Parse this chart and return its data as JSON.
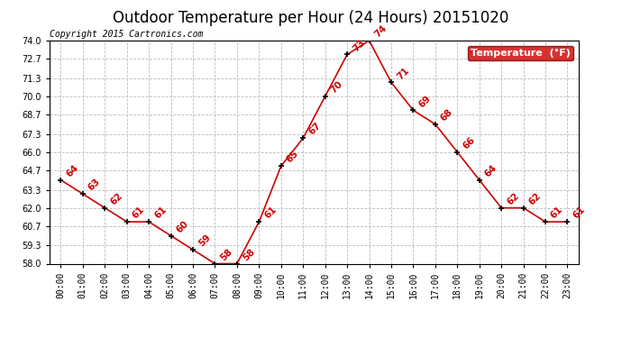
{
  "title": "Outdoor Temperature per Hour (24 Hours) 20151020",
  "copyright_text": "Copyright 2015 Cartronics.com",
  "legend_label": "Temperature  (°F)",
  "hours": [
    "00:00",
    "01:00",
    "02:00",
    "03:00",
    "04:00",
    "05:00",
    "06:00",
    "07:00",
    "08:00",
    "09:00",
    "10:00",
    "11:00",
    "12:00",
    "13:00",
    "14:00",
    "15:00",
    "16:00",
    "17:00",
    "18:00",
    "19:00",
    "20:00",
    "21:00",
    "22:00",
    "23:00"
  ],
  "temperatures": [
    64,
    63,
    62,
    61,
    61,
    60,
    59,
    58,
    58,
    61,
    65,
    67,
    70,
    73,
    74,
    71,
    69,
    68,
    66,
    64,
    62,
    62,
    61,
    61
  ],
  "line_color": "#cc0000",
  "marker_color": "#000000",
  "text_color": "#cc0000",
  "background_color": "#ffffff",
  "grid_color": "#bbbbbb",
  "ylim_min": 58.0,
  "ylim_max": 74.0,
  "yticks": [
    58.0,
    59.3,
    60.7,
    62.0,
    63.3,
    64.7,
    66.0,
    67.3,
    68.7,
    70.0,
    71.3,
    72.7,
    74.0
  ],
  "title_fontsize": 12,
  "copyright_fontsize": 7,
  "legend_bg": "#cc0000",
  "legend_text_color": "#ffffff",
  "legend_fontsize": 8
}
